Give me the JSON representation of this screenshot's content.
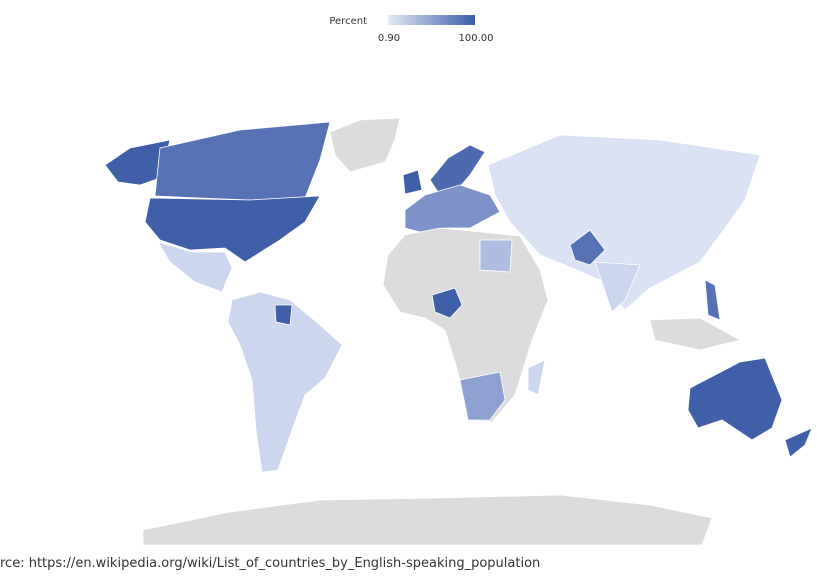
{
  "legend": {
    "title": "Percent",
    "min_label": "0.90",
    "max_label": "100.00"
  },
  "source": "rce: https://en.wikipedia.org/wiki/List_of_countries_by_English-speaking_population"
}
